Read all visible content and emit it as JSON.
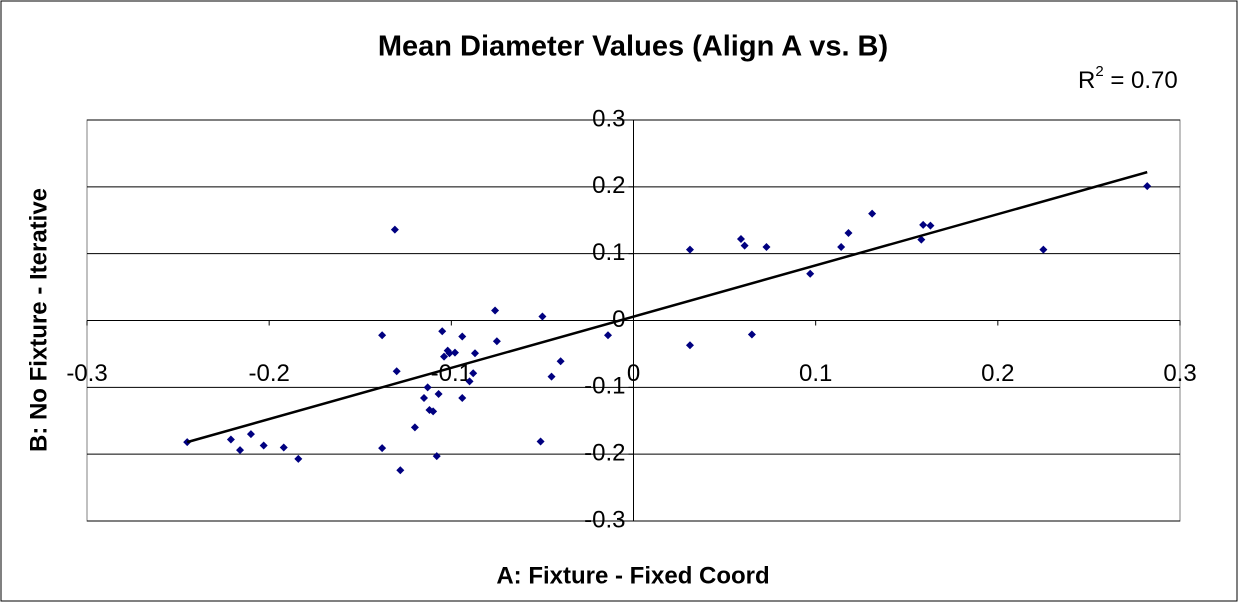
{
  "chart_data": {
    "type": "scatter",
    "title": "Mean Diameter Values (Align A vs. B)",
    "x_label": "A: Fixture - Fixed Coord",
    "y_label": "B: No Fixture -  Iterative",
    "annotation": [
      "R",
      "2",
      " = 0.70"
    ],
    "color": "#000080",
    "grid": true,
    "xlim": [
      -0.3,
      0.3
    ],
    "ylim": [
      -0.3,
      0.3
    ],
    "xticks": [
      -0.3,
      -0.2,
      -0.1,
      0,
      0.1,
      0.2,
      0.3
    ],
    "yticks": [
      -0.3,
      -0.2,
      -0.1,
      0,
      0.1,
      0.2,
      0.3
    ],
    "x": [
      -0.245,
      -0.221,
      -0.21,
      -0.203,
      -0.192,
      -0.184,
      -0.216,
      -0.131,
      -0.138,
      -0.13,
      -0.138,
      -0.128,
      -0.12,
      -0.115,
      -0.113,
      -0.112,
      -0.11,
      -0.107,
      -0.108,
      -0.105,
      -0.104,
      -0.102,
      -0.101,
      -0.098,
      -0.094,
      -0.094,
      -0.09,
      -0.088,
      -0.087,
      -0.076,
      -0.075,
      -0.05,
      -0.051,
      -0.045,
      -0.04,
      -0.014,
      0.031,
      0.031,
      0.059,
      0.061,
      0.065,
      0.073,
      0.097,
      0.114,
      0.118,
      0.131,
      0.158,
      0.159,
      0.163,
      0.225,
      0.282
    ],
    "y": [
      -0.182,
      -0.178,
      -0.17,
      -0.187,
      -0.19,
      -0.207,
      -0.194,
      0.136,
      -0.022,
      -0.076,
      -0.191,
      -0.224,
      -0.16,
      -0.116,
      -0.1,
      -0.134,
      -0.136,
      -0.11,
      -0.203,
      -0.016,
      -0.054,
      -0.045,
      -0.049,
      -0.048,
      -0.024,
      -0.116,
      -0.091,
      -0.079,
      -0.049,
      0.015,
      -0.031,
      0.006,
      -0.181,
      -0.084,
      -0.061,
      -0.022,
      0.106,
      -0.037,
      0.122,
      0.112,
      -0.021,
      0.11,
      0.07,
      0.11,
      0.131,
      0.16,
      0.121,
      0.143,
      0.142,
      0.106,
      0.201
    ],
    "trendline": {
      "x": [
        -0.245,
        0.282
      ],
      "y": [
        -0.182,
        0.222
      ]
    }
  }
}
